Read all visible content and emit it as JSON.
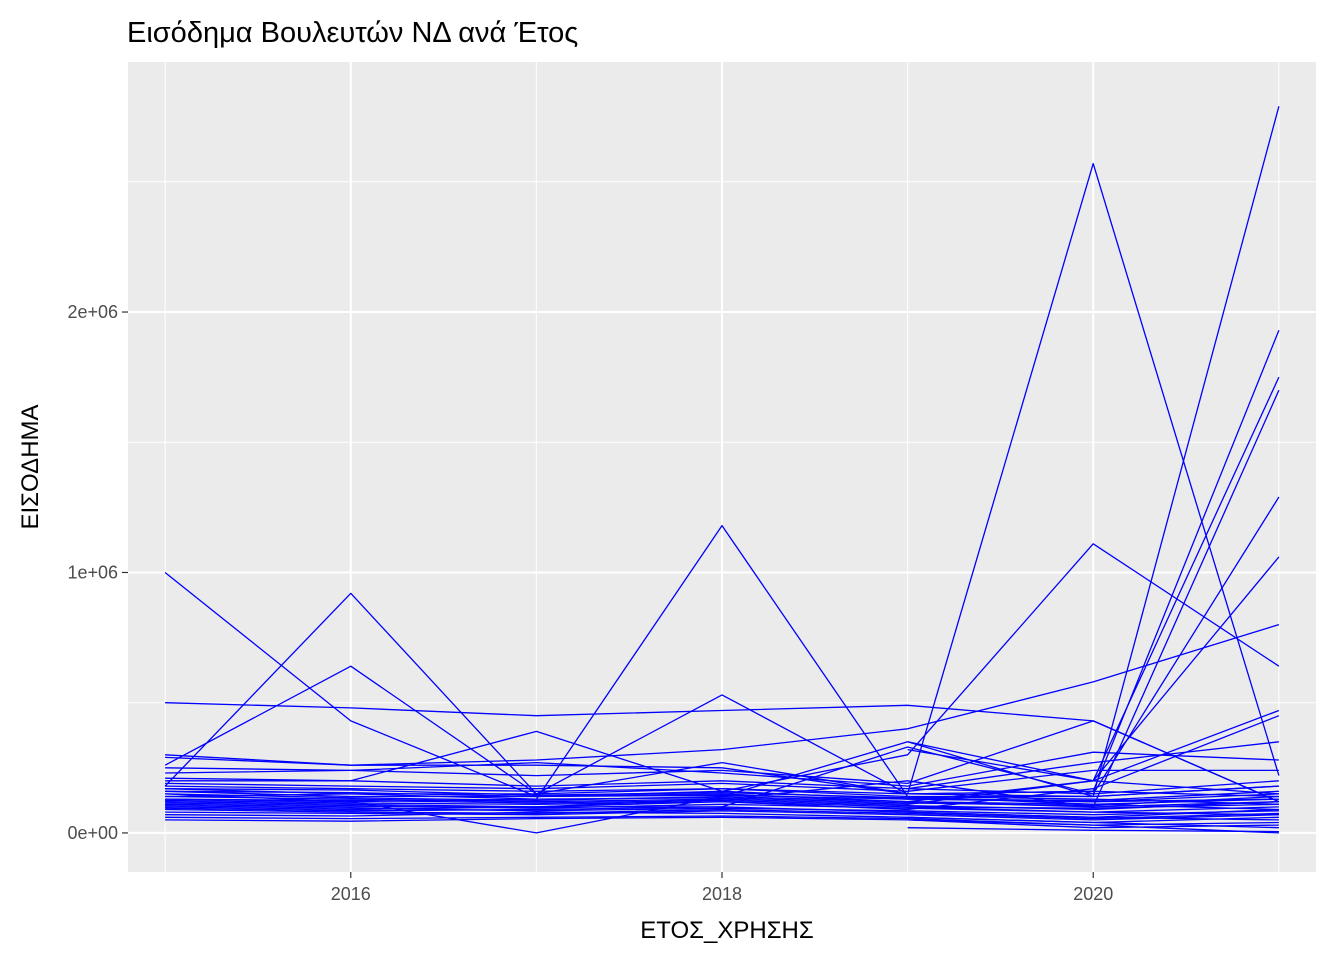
{
  "chart_data": {
    "type": "line",
    "title": "Εισόδημα Βουλευτών ΝΔ ανά Έτος",
    "xlabel": "ΕΤΟΣ_ΧΡΗΣΗΣ",
    "ylabel": "ΕΙΣΟΔΗΜΑ",
    "xlim": [
      2014.8,
      2021.2
    ],
    "ylim": [
      -150000,
      2960000
    ],
    "x_ticks": [
      2016,
      2018,
      2020
    ],
    "x_tick_labels": [
      "2016",
      "2018",
      "2020"
    ],
    "y_ticks": [
      0,
      1000000,
      2000000
    ],
    "y_tick_labels": [
      "0e+00",
      "1e+06",
      "2e+06"
    ],
    "grid": true,
    "legend": "none",
    "line_color": "#0000ff",
    "panel_background": "#ebebeb",
    "series": [
      {
        "x": [
          2015,
          2016,
          2017,
          2018,
          2019,
          2020,
          2021
        ],
        "y": [
          1000000,
          430000,
          140000,
          160000,
          130000,
          120000,
          130000
        ]
      },
      {
        "x": [
          2015,
          2016,
          2017,
          2018,
          2019,
          2020,
          2021
        ],
        "y": [
          180000,
          920000,
          150000,
          170000,
          140000,
          130000,
          110000
        ]
      },
      {
        "x": [
          2015,
          2016,
          2017,
          2018,
          2019,
          2020,
          2021
        ],
        "y": [
          260000,
          640000,
          150000,
          530000,
          150000,
          160000,
          140000
        ]
      },
      {
        "x": [
          2015,
          2016,
          2017,
          2018,
          2019,
          2020,
          2021
        ],
        "y": [
          500000,
          480000,
          450000,
          470000,
          490000,
          430000,
          120000
        ]
      },
      {
        "x": [
          2015,
          2016,
          2017,
          2018,
          2019,
          2020,
          2021
        ],
        "y": [
          290000,
          260000,
          260000,
          250000,
          150000,
          2570000,
          220000
        ]
      },
      {
        "x": [
          2015,
          2016,
          2017,
          2018,
          2019,
          2020,
          2021
        ],
        "y": [
          150000,
          120000,
          130000,
          1180000,
          140000,
          140000,
          2790000
        ]
      },
      {
        "x": [
          2015,
          2016,
          2017,
          2018,
          2019,
          2020,
          2021
        ],
        "y": [
          200000,
          200000,
          390000,
          160000,
          300000,
          1110000,
          640000
        ]
      },
      {
        "x": [
          2015,
          2016,
          2017,
          2018,
          2019,
          2020,
          2021
        ],
        "y": [
          300000,
          260000,
          280000,
          320000,
          400000,
          580000,
          800000
        ]
      },
      {
        "x": [
          2015,
          2016,
          2017,
          2018,
          2019,
          2020,
          2021
        ],
        "y": [
          170000,
          150000,
          150000,
          270000,
          150000,
          160000,
          1930000
        ]
      },
      {
        "x": [
          2015,
          2016,
          2017,
          2018,
          2019,
          2020,
          2021
        ],
        "y": [
          130000,
          120000,
          0,
          140000,
          350000,
          200000,
          1750000
        ]
      },
      {
        "x": [
          2015,
          2016,
          2017,
          2018,
          2019,
          2020,
          2021
        ],
        "y": [
          120000,
          110000,
          100000,
          130000,
          200000,
          100000,
          1700000
        ]
      },
      {
        "x": [
          2015,
          2016,
          2017,
          2018,
          2019,
          2020,
          2021
        ],
        "y": [
          100000,
          90000,
          100000,
          100000,
          330000,
          150000,
          1290000
        ]
      },
      {
        "x": [
          2015,
          2016,
          2017,
          2018,
          2019,
          2020,
          2021
        ],
        "y": [
          160000,
          140000,
          140000,
          150000,
          120000,
          200000,
          1060000
        ]
      },
      {
        "x": [
          2015,
          2016,
          2017,
          2018,
          2019,
          2020,
          2021
        ],
        "y": [
          250000,
          240000,
          220000,
          240000,
          190000,
          430000,
          120000
        ]
      },
      {
        "x": [
          2015,
          2016,
          2017,
          2018,
          2019,
          2020,
          2021
        ],
        "y": [
          140000,
          130000,
          120000,
          130000,
          110000,
          200000,
          470000
        ]
      },
      {
        "x": [
          2015,
          2016,
          2017,
          2018,
          2019,
          2020,
          2021
        ],
        "y": [
          110000,
          100000,
          100000,
          120000,
          90000,
          170000,
          450000
        ]
      },
      {
        "x": [
          2015,
          2016,
          2017,
          2018,
          2019,
          2020,
          2021
        ],
        "y": [
          230000,
          240000,
          270000,
          230000,
          180000,
          310000,
          280000
        ]
      },
      {
        "x": [
          2015,
          2016,
          2017,
          2018,
          2019,
          2020,
          2021
        ],
        "y": [
          210000,
          200000,
          180000,
          200000,
          170000,
          270000,
          350000
        ]
      },
      {
        "x": [
          2015,
          2016,
          2017,
          2018,
          2019,
          2020,
          2021
        ],
        "y": [
          190000,
          180000,
          170000,
          190000,
          160000,
          240000,
          240000
        ]
      },
      {
        "x": [
          2015,
          2016,
          2017,
          2018,
          2019,
          2020,
          2021
        ],
        "y": [
          95000,
          85000,
          90000,
          100000,
          80000,
          60000,
          90000
        ]
      },
      {
        "x": [
          2015,
          2016,
          2017,
          2018,
          2019,
          2020,
          2021
        ],
        "y": [
          80000,
          75000,
          70000,
          85000,
          70000,
          50000,
          70000
        ]
      },
      {
        "x": [
          2015,
          2016,
          2017,
          2018,
          2019,
          2020,
          2021
        ],
        "y": [
          60000,
          55000,
          60000,
          65000,
          55000,
          30000,
          40000
        ]
      },
      {
        "x": [
          2015,
          2016,
          2017,
          2018,
          2019,
          2020,
          2021
        ],
        "y": [
          130000,
          125000,
          115000,
          125000,
          105000,
          90000,
          120000
        ]
      },
      {
        "x": [
          2015,
          2016,
          2017,
          2018,
          2019,
          2020,
          2021
        ],
        "y": [
          170000,
          165000,
          145000,
          155000,
          135000,
          120000,
          150000
        ]
      },
      {
        "x": [
          2015,
          2016,
          2017,
          2018,
          2019,
          2020,
          2021
        ],
        "y": [
          115000,
          105000,
          95000,
          110000,
          95000,
          80000,
          100000
        ]
      },
      {
        "x": [
          2015,
          2016,
          2017,
          2018,
          2019,
          2020,
          2021
        ],
        "y": [
          150000,
          135000,
          125000,
          140000,
          120000,
          110000,
          130000
        ]
      },
      {
        "x": [
          2015,
          2016,
          2017,
          2018,
          2019,
          2020,
          2021
        ],
        "y": [
          70000,
          65000,
          80000,
          75000,
          60000,
          40000,
          60000
        ]
      },
      {
        "x": [
          2015,
          2016,
          2017,
          2018,
          2019,
          2020,
          2021
        ],
        "y": [
          105000,
          95000,
          85000,
          95000,
          85000,
          70000,
          85000
        ]
      },
      {
        "x": [
          2015,
          2016,
          2017,
          2018,
          2019,
          2020,
          2021
        ],
        "y": [
          180000,
          170000,
          160000,
          170000,
          150000,
          140000,
          180000
        ]
      },
      {
        "x": [
          2015,
          2016,
          2017,
          2018,
          2019,
          2020,
          2021
        ],
        "y": [
          125000,
          115000,
          110000,
          120000,
          100000,
          95000,
          110000
        ]
      },
      {
        "x": [
          2015,
          2016,
          2017,
          2018,
          2019,
          2020,
          2021
        ],
        "y": [
          140000,
          150000,
          130000,
          135000,
          115000,
          105000,
          140000
        ]
      },
      {
        "x": [
          2015,
          2016,
          2017,
          2018,
          2019,
          2020,
          2021
        ],
        "y": [
          90000,
          80000,
          75000,
          90000,
          75000,
          55000,
          75000
        ]
      },
      {
        "x": [
          2015,
          2016,
          2017,
          2018,
          2019,
          2020,
          2021
        ],
        "y": [
          160000,
          155000,
          140000,
          145000,
          130000,
          125000,
          160000
        ]
      },
      {
        "x": [
          2015,
          2016,
          2017,
          2018,
          2019,
          2020,
          2021
        ],
        "y": [
          50000,
          45000,
          55000,
          60000,
          50000,
          20000,
          30000
        ]
      },
      {
        "x": [
          2019,
          2020,
          2021
        ],
        "y": [
          350000,
          140000,
          180000
        ]
      },
      {
        "x": [
          2019,
          2020,
          2021
        ],
        "y": [
          320000,
          200000,
          150000
        ]
      },
      {
        "x": [
          2019,
          2020,
          2021
        ],
        "y": [
          50000,
          30000,
          0
        ]
      },
      {
        "x": [
          2019,
          2020,
          2021
        ],
        "y": [
          20000,
          10000,
          5000
        ]
      },
      {
        "x": [
          2019,
          2020,
          2021
        ],
        "y": [
          80000,
          60000,
          50000
        ]
      },
      {
        "x": [
          2019,
          2020,
          2021
        ],
        "y": [
          140000,
          110000,
          90000
        ]
      },
      {
        "x": [
          2019,
          2020,
          2021
        ],
        "y": [
          100000,
          80000,
          70000
        ]
      },
      {
        "x": [
          2019,
          2020,
          2021
        ],
        "y": [
          170000,
          150000,
          200000
        ]
      },
      {
        "x": [
          2019,
          2020,
          2021
        ],
        "y": [
          60000,
          40000,
          20000
        ]
      },
      {
        "x": [
          2019,
          2020,
          2021
        ],
        "y": [
          120000,
          100000,
          120000
        ]
      }
    ]
  }
}
